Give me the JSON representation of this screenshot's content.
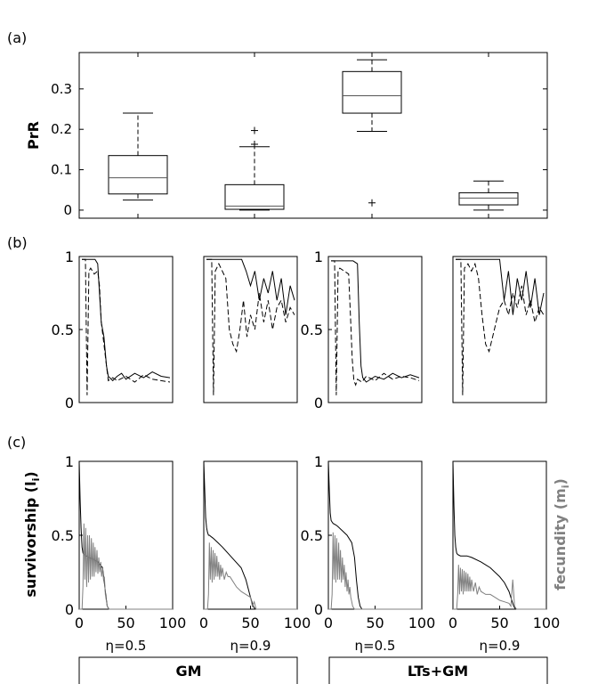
{
  "chart_data": [
    {
      "type": "boxplot",
      "panel_label": "(a)",
      "ylabel": "PrR",
      "ylim": [
        -0.02,
        0.39
      ],
      "yticks": [
        0,
        0.1,
        0.2,
        0.3
      ],
      "ytick_labels": [
        "0",
        "0.1",
        "0.2",
        "0.3"
      ],
      "boxes": [
        {
          "min": 0.025,
          "q1": 0.04,
          "median": 0.08,
          "q3": 0.135,
          "max": 0.24,
          "outliers": []
        },
        {
          "min": 0.0,
          "q1": 0.002,
          "median": 0.01,
          "q3": 0.063,
          "max": 0.157,
          "outliers": [
            0.163,
            0.197
          ]
        },
        {
          "min": 0.195,
          "q1": 0.24,
          "median": 0.283,
          "q3": 0.343,
          "max": 0.372,
          "outliers": [
            0.018
          ]
        },
        {
          "min": 0.0,
          "q1": 0.013,
          "median": 0.03,
          "q3": 0.043,
          "max": 0.072,
          "outliers": []
        }
      ]
    },
    {
      "type": "line",
      "panel_label": "(b)",
      "ylim": [
        0,
        1
      ],
      "yticks": [
        0,
        0.5,
        1
      ],
      "ytick_labels": [
        "0",
        "0.5",
        "1"
      ],
      "subplots": [
        {
          "series": [
            {
              "name": "solid",
              "x": [
                0,
                5,
                10,
                15,
                18,
                20,
                22,
                25,
                28,
                30,
                35,
                40,
                45,
                50,
                60,
                70,
                80,
                90,
                100
              ],
              "y": [
                0.98,
                0.98,
                0.98,
                0.98,
                0.95,
                0.75,
                0.55,
                0.45,
                0.25,
                0.18,
                0.15,
                0.18,
                0.2,
                0.16,
                0.2,
                0.17,
                0.21,
                0.18,
                0.17
              ]
            },
            {
              "name": "dashed",
              "x": [
                0,
                4,
                6,
                8,
                10,
                14,
                18,
                20,
                22,
                25,
                28,
                30,
                35,
                40,
                50,
                60,
                70,
                80,
                90,
                100
              ],
              "y": [
                0.98,
                0.98,
                0.05,
                0.9,
                0.92,
                0.88,
                0.9,
                0.8,
                0.55,
                0.4,
                0.25,
                0.15,
                0.17,
                0.15,
                0.18,
                0.14,
                0.19,
                0.16,
                0.15,
                0.14
              ]
            }
          ]
        },
        {
          "series": [
            {
              "name": "solid",
              "x": [
                0,
                10,
                20,
                30,
                40,
                45,
                50,
                55,
                60,
                65,
                70,
                75,
                80,
                85,
                90,
                95,
                100
              ],
              "y": [
                0.98,
                0.98,
                0.98,
                0.98,
                0.98,
                0.9,
                0.8,
                0.9,
                0.7,
                0.85,
                0.75,
                0.9,
                0.7,
                0.85,
                0.6,
                0.8,
                0.7
              ]
            },
            {
              "name": "dashed",
              "x": [
                0,
                6,
                8,
                10,
                14,
                18,
                22,
                26,
                30,
                34,
                38,
                42,
                46,
                50,
                55,
                60,
                65,
                70,
                75,
                80,
                85,
                90,
                95,
                100
              ],
              "y": [
                0.98,
                0.98,
                0.05,
                0.9,
                0.95,
                0.9,
                0.85,
                0.5,
                0.4,
                0.35,
                0.5,
                0.7,
                0.45,
                0.6,
                0.5,
                0.75,
                0.55,
                0.7,
                0.5,
                0.65,
                0.7,
                0.55,
                0.65,
                0.6
              ]
            }
          ]
        },
        {
          "series": [
            {
              "name": "solid",
              "x": [
                0,
                5,
                10,
                15,
                20,
                25,
                30,
                32,
                34,
                36,
                40,
                50,
                60,
                70,
                80,
                90,
                100
              ],
              "y": [
                0.97,
                0.97,
                0.97,
                0.97,
                0.97,
                0.97,
                0.95,
                0.55,
                0.25,
                0.17,
                0.14,
                0.18,
                0.16,
                0.2,
                0.17,
                0.19,
                0.17
              ]
            },
            {
              "name": "dashed",
              "x": [
                0,
                4,
                6,
                8,
                10,
                15,
                20,
                22,
                24,
                26,
                28,
                30,
                35,
                40,
                50,
                60,
                70,
                80,
                90,
                100
              ],
              "y": [
                0.97,
                0.97,
                0.05,
                0.9,
                0.92,
                0.9,
                0.88,
                0.6,
                0.3,
                0.15,
                0.12,
                0.16,
                0.14,
                0.18,
                0.15,
                0.2,
                0.16,
                0.18,
                0.17,
                0.15
              ]
            }
          ]
        },
        {
          "series": [
            {
              "name": "solid",
              "x": [
                0,
                10,
                20,
                30,
                40,
                50,
                55,
                60,
                65,
                70,
                75,
                80,
                85,
                90,
                95,
                100
              ],
              "y": [
                0.98,
                0.98,
                0.98,
                0.98,
                0.98,
                0.98,
                0.7,
                0.9,
                0.6,
                0.85,
                0.7,
                0.9,
                0.65,
                0.85,
                0.6,
                0.75
              ]
            },
            {
              "name": "dashed",
              "x": [
                0,
                6,
                8,
                10,
                14,
                18,
                22,
                26,
                30,
                34,
                38,
                42,
                46,
                50,
                55,
                60,
                65,
                70,
                75,
                80,
                85,
                90,
                95,
                100
              ],
              "y": [
                0.98,
                0.98,
                0.05,
                0.92,
                0.95,
                0.9,
                0.95,
                0.85,
                0.6,
                0.4,
                0.35,
                0.45,
                0.55,
                0.65,
                0.7,
                0.6,
                0.75,
                0.65,
                0.8,
                0.6,
                0.7,
                0.55,
                0.65,
                0.6
              ]
            }
          ]
        }
      ]
    },
    {
      "type": "line",
      "panel_label": "(c)",
      "ylabel": "survivorship (l",
      "ylabel_sub": "i",
      "ylabel_close": ")",
      "ylabel_right": "fecundity (m",
      "ylabel_right_sub": "i",
      "ylabel_right_close": ")",
      "xlim": [
        0,
        100
      ],
      "ylim": [
        0,
        1
      ],
      "xticks": [
        0,
        50,
        100
      ],
      "xtick_labels": [
        "0",
        "50",
        "100"
      ],
      "yticks": [
        0,
        0.5,
        1
      ],
      "ytick_labels": [
        "0",
        "0.5",
        "1"
      ],
      "subplots": [
        {
          "xlabel": "η=0.5",
          "series": [
            {
              "name": "survivorship",
              "color": "#000000",
              "x": [
                0,
                1,
                2,
                3,
                4,
                5,
                6,
                8,
                10,
                15,
                20,
                25,
                28,
                30,
                32,
                35,
                100
              ],
              "y": [
                1.0,
                0.75,
                0.55,
                0.42,
                0.38,
                0.37,
                0.36,
                0.36,
                0.35,
                0.34,
                0.32,
                0.28,
                0.12,
                0.02,
                0.0,
                0.0,
                0.0
              ]
            },
            {
              "name": "fecundity",
              "color": "#808080",
              "x": [
                0,
                3,
                4,
                5,
                6,
                7,
                8,
                9,
                10,
                11,
                12,
                13,
                14,
                15,
                16,
                17,
                18,
                19,
                20,
                21,
                22,
                23,
                24,
                25,
                26,
                27,
                28,
                30,
                32,
                100
              ],
              "y": [
                0,
                0,
                0.15,
                0.58,
                0.2,
                0.55,
                0.15,
                0.5,
                0.18,
                0.5,
                0.2,
                0.48,
                0.22,
                0.45,
                0.22,
                0.42,
                0.25,
                0.4,
                0.24,
                0.35,
                0.25,
                0.32,
                0.22,
                0.28,
                0.2,
                0.22,
                0.1,
                0.02,
                0,
                0
              ]
            }
          ]
        },
        {
          "xlabel": "η=0.9",
          "series": [
            {
              "name": "survivorship",
              "color": "#000000",
              "x": [
                0,
                1,
                2,
                3,
                4,
                5,
                6,
                8,
                10,
                15,
                20,
                30,
                40,
                45,
                50,
                53,
                55,
                100
              ],
              "y": [
                1.0,
                0.8,
                0.62,
                0.55,
                0.52,
                0.5,
                0.5,
                0.49,
                0.48,
                0.45,
                0.42,
                0.35,
                0.28,
                0.2,
                0.08,
                0.02,
                0.0,
                0.0
              ]
            },
            {
              "name": "fecundity",
              "color": "#808080",
              "x": [
                0,
                4,
                5,
                6,
                7,
                8,
                9,
                10,
                11,
                12,
                13,
                14,
                15,
                16,
                17,
                18,
                19,
                20,
                22,
                24,
                26,
                28,
                30,
                35,
                40,
                45,
                50,
                52,
                54,
                56,
                100
              ],
              "y": [
                0,
                0,
                0.1,
                0.45,
                0.2,
                0.42,
                0.18,
                0.4,
                0.2,
                0.38,
                0.22,
                0.36,
                0.22,
                0.32,
                0.2,
                0.3,
                0.22,
                0.28,
                0.2,
                0.25,
                0.22,
                0.22,
                0.2,
                0.15,
                0.12,
                0.1,
                0.08,
                0.02,
                0.05,
                0,
                0
              ]
            }
          ]
        },
        {
          "xlabel": "η=0.5",
          "series": [
            {
              "name": "survivorship",
              "color": "#000000",
              "x": [
                0,
                1,
                2,
                3,
                4,
                5,
                8,
                10,
                15,
                20,
                25,
                28,
                30,
                32,
                34,
                36,
                38,
                100
              ],
              "y": [
                1.0,
                0.8,
                0.65,
                0.6,
                0.59,
                0.58,
                0.57,
                0.56,
                0.53,
                0.5,
                0.45,
                0.35,
                0.2,
                0.08,
                0.02,
                0.0,
                0.0,
                0.0
              ]
            },
            {
              "name": "fecundity",
              "color": "#808080",
              "x": [
                0,
                3,
                4,
                5,
                6,
                7,
                8,
                9,
                10,
                11,
                12,
                13,
                14,
                15,
                16,
                17,
                18,
                19,
                20,
                21,
                22,
                23,
                24,
                25,
                26,
                28,
                30,
                100
              ],
              "y": [
                0,
                0,
                0.1,
                0.52,
                0.2,
                0.5,
                0.18,
                0.48,
                0.2,
                0.45,
                0.2,
                0.4,
                0.18,
                0.35,
                0.2,
                0.3,
                0.15,
                0.25,
                0.12,
                0.2,
                0.1,
                0.15,
                0.08,
                0.05,
                0.02,
                0,
                0,
                0
              ]
            }
          ]
        },
        {
          "xlabel": "η=0.9",
          "series": [
            {
              "name": "survivorship",
              "color": "#000000",
              "x": [
                0,
                1,
                2,
                3,
                4,
                5,
                8,
                10,
                15,
                20,
                30,
                40,
                50,
                55,
                60,
                63,
                65,
                67,
                100
              ],
              "y": [
                1.0,
                0.7,
                0.5,
                0.42,
                0.38,
                0.37,
                0.36,
                0.36,
                0.36,
                0.35,
                0.32,
                0.28,
                0.22,
                0.18,
                0.12,
                0.06,
                0.02,
                0.0,
                0.0
              ]
            },
            {
              "name": "fecundity",
              "color": "#808080",
              "x": [
                0,
                4,
                5,
                6,
                7,
                8,
                9,
                10,
                11,
                12,
                13,
                14,
                15,
                16,
                17,
                18,
                19,
                20,
                22,
                24,
                26,
                28,
                30,
                35,
                40,
                45,
                50,
                55,
                60,
                62,
                64,
                66,
                68,
                100
              ],
              "y": [
                0,
                0,
                0.1,
                0.3,
                0.1,
                0.28,
                0.12,
                0.27,
                0.1,
                0.26,
                0.12,
                0.25,
                0.12,
                0.24,
                0.12,
                0.22,
                0.12,
                0.2,
                0.12,
                0.18,
                0.1,
                0.15,
                0.12,
                0.1,
                0.1,
                0.08,
                0.06,
                0.05,
                0.04,
                0.02,
                0.2,
                0.02,
                0,
                0
              ]
            }
          ]
        }
      ]
    }
  ],
  "groups": [
    {
      "label": "GM"
    },
    {
      "label": "LTs+GM"
    }
  ]
}
